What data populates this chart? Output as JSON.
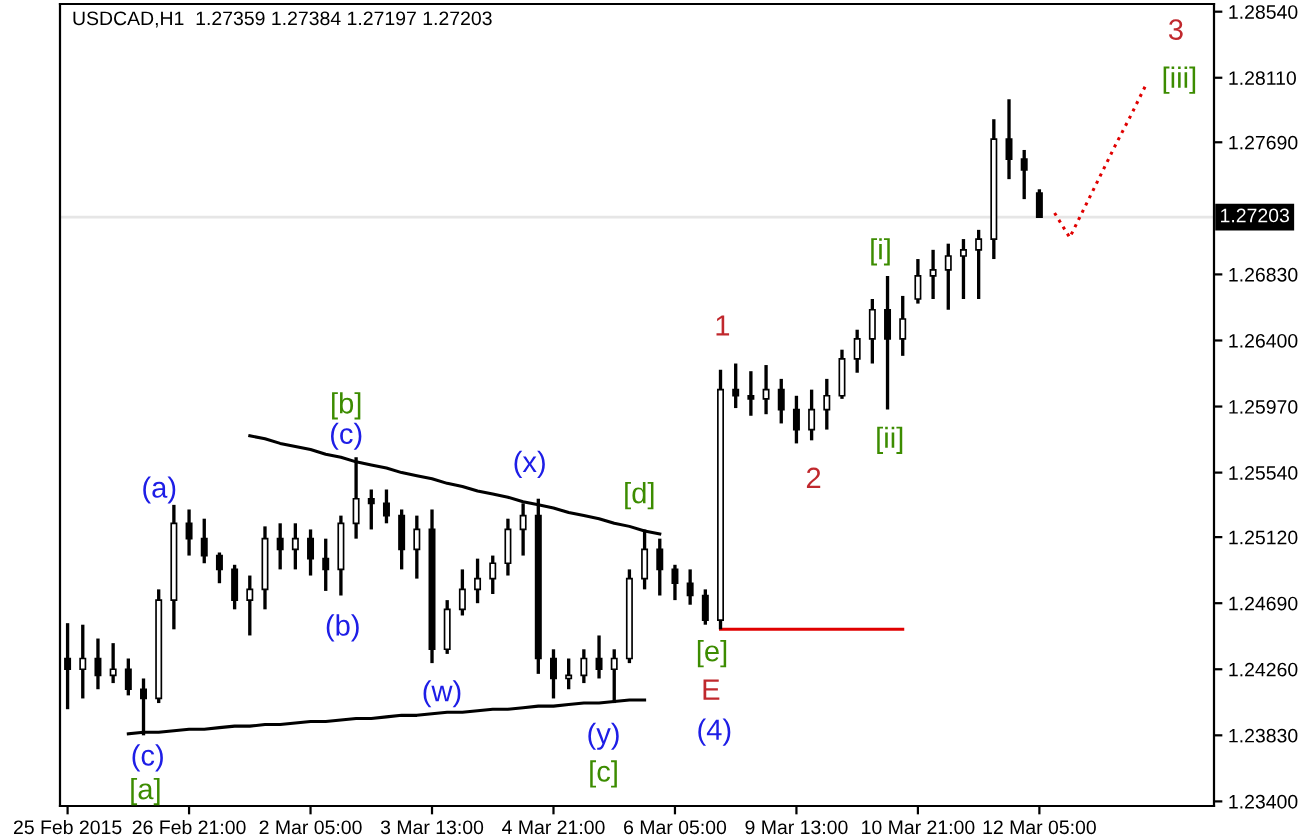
{
  "chart_data": {
    "type": "candlestick",
    "title": "USDCAD,H1  1.27359 1.27384 1.27197 1.27203",
    "categories": [
      "25 Feb 2015",
      null,
      null,
      null,
      null,
      null,
      null,
      null,
      "26 Feb 21:00",
      null,
      null,
      null,
      null,
      null,
      null,
      null,
      "2 Mar 05:00",
      null,
      null,
      null,
      null,
      null,
      null,
      null,
      "3 Mar 13:00",
      null,
      null,
      null,
      null,
      null,
      null,
      null,
      "4 Mar 21:00",
      null,
      null,
      null,
      null,
      null,
      null,
      null,
      "6 Mar 05:00",
      null,
      null,
      null,
      null,
      null,
      null,
      null,
      "9 Mar 13:00",
      null,
      null,
      null,
      null,
      null,
      null,
      null,
      "10 Mar 21:00",
      null,
      null,
      null,
      null,
      null,
      null,
      null,
      "12 Mar 05:00",
      null,
      null,
      null,
      null,
      null,
      null,
      null,
      null,
      null,
      null,
      null
    ],
    "ohlc": [
      [
        1.2433,
        1.2456,
        1.24,
        1.2426
      ],
      [
        1.2426,
        1.2455,
        1.2407,
        1.2433
      ],
      [
        1.2433,
        1.2446,
        1.2413,
        1.2422
      ],
      [
        1.2422,
        1.2443,
        1.2417,
        1.2426
      ],
      [
        1.2426,
        1.2433,
        1.2409,
        1.2413
      ],
      [
        1.2413,
        1.242,
        1.2383,
        1.2407
      ],
      [
        1.2407,
        1.2478,
        1.2404,
        1.2471
      ],
      [
        1.2471,
        1.2533,
        1.2452,
        1.2521
      ],
      [
        1.2521,
        1.253,
        1.25,
        1.2511
      ],
      [
        1.2511,
        1.2524,
        1.2495,
        1.25
      ],
      [
        1.25,
        1.2502,
        1.2482,
        1.2491
      ],
      [
        1.2491,
        1.2494,
        1.2465,
        1.2471
      ],
      [
        1.2471,
        1.2487,
        1.2448,
        1.2478
      ],
      [
        1.2478,
        1.2519,
        1.2465,
        1.2511
      ],
      [
        1.2511,
        1.2521,
        1.2491,
        1.2504
      ],
      [
        1.2504,
        1.2521,
        1.2491,
        1.2511
      ],
      [
        1.2511,
        1.2517,
        1.2487,
        1.2498
      ],
      [
        1.2498,
        1.2511,
        1.2477,
        1.2491
      ],
      [
        1.2491,
        1.2526,
        1.2474,
        1.2521
      ],
      [
        1.2521,
        1.2564,
        1.2511,
        1.2537
      ],
      [
        1.2537,
        1.2543,
        1.2517,
        1.2534
      ],
      [
        1.2534,
        1.2543,
        1.2521,
        1.2526
      ],
      [
        1.2526,
        1.253,
        1.2491,
        1.2504
      ],
      [
        1.2504,
        1.2526,
        1.2485,
        1.2517
      ],
      [
        1.2517,
        1.253,
        1.243,
        1.2439
      ],
      [
        1.2439,
        1.2471,
        1.2436,
        1.2465
      ],
      [
        1.2465,
        1.2491,
        1.2461,
        1.2478
      ],
      [
        1.2478,
        1.2498,
        1.2469,
        1.2485
      ],
      [
        1.2485,
        1.25,
        1.2475,
        1.2495
      ],
      [
        1.2495,
        1.2524,
        1.2487,
        1.2517
      ],
      [
        1.2517,
        1.2534,
        1.25,
        1.2526
      ],
      [
        1.2526,
        1.2537,
        1.2423,
        1.2433
      ],
      [
        1.2433,
        1.2439,
        1.2407,
        1.242
      ],
      [
        1.242,
        1.2433,
        1.2413,
        1.2422
      ],
      [
        1.2422,
        1.2439,
        1.2417,
        1.2433
      ],
      [
        1.2433,
        1.2448,
        1.242,
        1.2426
      ],
      [
        1.2426,
        1.2439,
        1.2404,
        1.2433
      ],
      [
        1.2433,
        1.2491,
        1.243,
        1.2485
      ],
      [
        1.2485,
        1.2517,
        1.2478,
        1.2504
      ],
      [
        1.2504,
        1.2511,
        1.2474,
        1.2491
      ],
      [
        1.2491,
        1.2494,
        1.2471,
        1.2482
      ],
      [
        1.2482,
        1.2491,
        1.2468,
        1.2474
      ],
      [
        1.2474,
        1.2478,
        1.2455,
        1.2458
      ],
      [
        1.2458,
        1.2621,
        1.2452,
        1.2608
      ],
      [
        1.2608,
        1.2625,
        1.2596,
        1.2604
      ],
      [
        1.2604,
        1.262,
        1.2591,
        1.2602
      ],
      [
        1.2602,
        1.2624,
        1.2592,
        1.2608
      ],
      [
        1.2608,
        1.2615,
        1.2586,
        1.2595
      ],
      [
        1.2595,
        1.2604,
        1.2573,
        1.2582
      ],
      [
        1.2582,
        1.2608,
        1.2575,
        1.2595
      ],
      [
        1.2595,
        1.2615,
        1.2582,
        1.2604
      ],
      [
        1.2604,
        1.2634,
        1.2602,
        1.2628
      ],
      [
        1.2628,
        1.2647,
        1.2619,
        1.2641
      ],
      [
        1.2641,
        1.2667,
        1.2625,
        1.266
      ],
      [
        1.266,
        1.2682,
        1.2595,
        1.2641
      ],
      [
        1.2641,
        1.2669,
        1.263,
        1.2654
      ],
      [
        1.2667,
        1.2693,
        1.2664,
        1.2682
      ],
      [
        1.2682,
        1.2699,
        1.2667,
        1.2686
      ],
      [
        1.2686,
        1.2703,
        1.266,
        1.2695
      ],
      [
        1.2695,
        1.2706,
        1.2667,
        1.2699
      ],
      [
        1.2699,
        1.2712,
        1.2667,
        1.2706
      ],
      [
        1.2706,
        1.2784,
        1.2693,
        1.2771
      ],
      [
        1.2771,
        1.2797,
        1.2745,
        1.2758
      ],
      [
        1.2758,
        1.2764,
        1.2732,
        1.2751
      ],
      [
        1.27359,
        1.27384,
        1.27197,
        1.27203
      ],
      null,
      null,
      null,
      null,
      null,
      null,
      null,
      null,
      null,
      null,
      null
    ],
    "series": [
      {
        "type": "line",
        "color": "#000000",
        "line_style": "solid",
        "values": [
          null,
          null,
          null,
          null,
          1.2384,
          1.2385,
          1.2385,
          1.2386,
          1.2387,
          1.2387,
          1.2388,
          1.2389,
          1.2389,
          1.239,
          1.239,
          1.2391,
          1.2392,
          1.2392,
          1.2393,
          1.2394,
          1.2394,
          1.2395,
          1.2396,
          1.2396,
          1.2397,
          1.2398,
          1.2398,
          1.2399,
          1.24,
          1.24,
          1.2401,
          1.2402,
          1.2402,
          1.2403,
          1.2404,
          1.2404,
          1.2405,
          1.2406,
          1.2406,
          null,
          null,
          null,
          null,
          null,
          null,
          null,
          null,
          null,
          null,
          null,
          null,
          null,
          null,
          null,
          null,
          null,
          null,
          null,
          null,
          null,
          null,
          null,
          null,
          null,
          null,
          null,
          null,
          null,
          null,
          null,
          null,
          null,
          null,
          null,
          null,
          null
        ]
      },
      {
        "type": "line",
        "color": "#000000",
        "line_style": "solid",
        "values": [
          null,
          null,
          null,
          null,
          null,
          null,
          null,
          null,
          null,
          null,
          null,
          null,
          1.2578,
          1.2576,
          1.2573,
          1.2571,
          1.2569,
          1.2566,
          1.2564,
          1.2561,
          1.2559,
          1.2557,
          1.2554,
          1.2552,
          1.255,
          1.2547,
          1.2545,
          1.2542,
          1.254,
          1.2538,
          1.2535,
          1.2533,
          1.2531,
          1.2528,
          1.2526,
          1.2524,
          1.2521,
          1.2519,
          1.2516,
          1.2514,
          null,
          null,
          null,
          null,
          null,
          null,
          null,
          null,
          null,
          null,
          null,
          null,
          null,
          null,
          null,
          null,
          null,
          null,
          null,
          null,
          null,
          null,
          null,
          null,
          null,
          null,
          null,
          null,
          null,
          null,
          null,
          null,
          null,
          null,
          null,
          null
        ]
      },
      {
        "type": "line",
        "color": "#e00000",
        "line_style": "solid",
        "values": [
          null,
          null,
          null,
          null,
          null,
          null,
          null,
          null,
          null,
          null,
          null,
          null,
          null,
          null,
          null,
          null,
          null,
          null,
          null,
          null,
          null,
          null,
          null,
          null,
          null,
          null,
          null,
          null,
          null,
          null,
          null,
          null,
          null,
          null,
          null,
          null,
          null,
          null,
          null,
          null,
          null,
          null,
          null,
          1.2452,
          1.2452,
          1.2452,
          1.2452,
          1.2452,
          1.2452,
          1.2452,
          1.2452,
          1.2452,
          1.2452,
          1.2452,
          1.2452,
          1.2452,
          null,
          null,
          null,
          null,
          null,
          null,
          null,
          null,
          null,
          null,
          null,
          null,
          null,
          null,
          null,
          null,
          null,
          null,
          null,
          null
        ]
      },
      {
        "type": "line",
        "color": "#e00000",
        "line_style": "dotted",
        "values": [
          null,
          null,
          null,
          null,
          null,
          null,
          null,
          null,
          null,
          null,
          null,
          null,
          null,
          null,
          null,
          null,
          null,
          null,
          null,
          null,
          null,
          null,
          null,
          null,
          null,
          null,
          null,
          null,
          null,
          null,
          null,
          null,
          null,
          null,
          null,
          null,
          null,
          null,
          null,
          null,
          null,
          null,
          null,
          null,
          null,
          null,
          null,
          null,
          null,
          null,
          null,
          null,
          null,
          null,
          null,
          null,
          null,
          null,
          null,
          null,
          null,
          null,
          null,
          null,
          null,
          1.2723,
          1.2707,
          1.2727,
          1.2747,
          1.2767,
          1.2786,
          1.2806,
          null,
          null,
          null,
          null
        ]
      }
    ],
    "ylim": [
      1.2337,
      1.2859
    ],
    "yticks": [
      {
        "value": 1.2854,
        "label": "1.28540"
      },
      {
        "value": 1.2811,
        "label": "1.28110"
      },
      {
        "value": 1.2769,
        "label": "1.27690"
      },
      {
        "value": 1.2683,
        "label": "1.26830"
      },
      {
        "value": 1.264,
        "label": "1.26400"
      },
      {
        "value": 1.2597,
        "label": "1.25970"
      },
      {
        "value": 1.2554,
        "label": "1.25540"
      },
      {
        "value": 1.2512,
        "label": "1.25120"
      },
      {
        "value": 1.2469,
        "label": "1.24690"
      },
      {
        "value": 1.2426,
        "label": "1.24260"
      },
      {
        "value": 1.2383,
        "label": "1.23830"
      },
      {
        "value": 1.234,
        "label": "1.23400"
      }
    ],
    "ref_lines": [
      {
        "axis": "y",
        "value": 1.27203,
        "label": "1.27203",
        "color": "#e6e6e6"
      }
    ],
    "grid": false,
    "annotations": [
      "(a)",
      "(c)",
      "[b]",
      "(b)",
      "(w)",
      "(x)",
      "[d]",
      "(y)",
      "[c]",
      "(c)",
      "[a]",
      "[e]",
      "E",
      "(4)",
      "1",
      "2",
      "[i]",
      "[ii]",
      "[iii]",
      "3"
    ]
  }
}
